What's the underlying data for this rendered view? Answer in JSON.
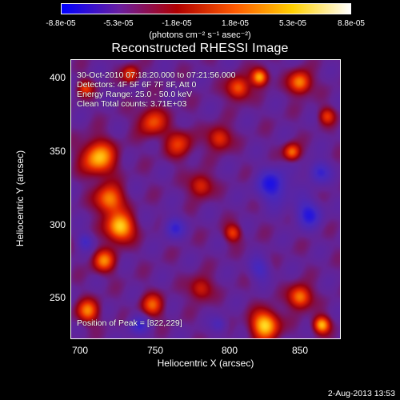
{
  "colorbar": {
    "ticks": [
      "-8.8e-05",
      "-5.3e-05",
      "-1.8e-05",
      "1.8e-05",
      "5.3e-05",
      "8.8e-05"
    ],
    "units": "(photons cm⁻² s⁻¹ asec⁻²)",
    "colors": [
      "#0000ff",
      "#6a1fa0",
      "#b00000",
      "#ff5a00",
      "#ffd000",
      "#ffffff"
    ]
  },
  "title": "Reconstructed RHESSI Image",
  "annotations": {
    "time": "30-Oct-2010 07:18:20.000 to 07:21:56.000",
    "detectors": "Detectors: 4F 5F 6F 7F 8F, Att 0",
    "energy": "Energy Range: 25.0 - 50.0 keV",
    "clean": "Clean    Total counts: 3.71E+03",
    "peak": "Position of Peak = [822,229]"
  },
  "axes": {
    "xlabel": "Heliocentric X (arcsec)",
    "ylabel": "Heliocentric Y (arcsec)",
    "xticks": [
      "700",
      "750",
      "800",
      "850"
    ],
    "yticks": [
      "400",
      "350",
      "300",
      "250"
    ],
    "xlim": [
      688,
      878
    ],
    "ylim": [
      220,
      412
    ]
  },
  "footer_date": "2-Aug-2013 13:53"
}
